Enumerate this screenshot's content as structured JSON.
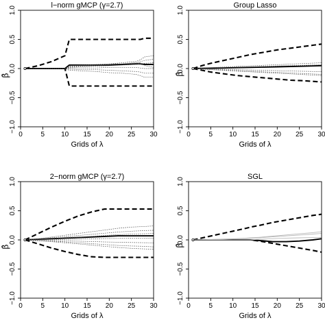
{
  "chart_data": [
    {
      "type": "line",
      "title": "l−norm gMCP (γ=2.7)",
      "xlabel": "Grids of λ",
      "ylabel": "β̂",
      "xlim": [
        0,
        30
      ],
      "ylim": [
        -1,
        1
      ],
      "xticks": [
        "0",
        "5",
        "10",
        "15",
        "20",
        "25",
        "30"
      ],
      "yticks": [
        "−1.0",
        "−0.5",
        "0.0",
        "0.5",
        "1.0"
      ],
      "x": [
        1,
        4,
        7,
        10,
        11,
        14,
        17,
        20,
        23,
        26,
        27,
        28,
        30
      ],
      "series": [
        {
          "style": "thickdash",
          "values": [
            0,
            0.05,
            0.12,
            0.22,
            0.5,
            0.5,
            0.5,
            0.5,
            0.5,
            0.5,
            0.5,
            0.52,
            0.52
          ]
        },
        {
          "style": "thickdash",
          "values": [
            0,
            0,
            0,
            0,
            -0.3,
            -0.3,
            -0.3,
            -0.3,
            -0.3,
            -0.3,
            -0.3,
            -0.3,
            -0.3
          ]
        },
        {
          "style": "solid",
          "values": [
            0,
            0,
            0,
            0,
            0.06,
            0.06,
            0.06,
            0.06,
            0.07,
            0.08,
            0.08,
            0.07,
            0.07
          ]
        },
        {
          "style": "dotted",
          "values": [
            0,
            0,
            0,
            0,
            0.04,
            0.05,
            0.06,
            0.08,
            0.1,
            0.12,
            0.15,
            0.2,
            0.22
          ]
        },
        {
          "style": "dotted",
          "values": [
            0,
            0,
            0,
            0,
            0.03,
            0.04,
            0.05,
            0.07,
            0.08,
            0.1,
            0.12,
            0.14,
            0.16
          ]
        },
        {
          "style": "dotted",
          "values": [
            0,
            0,
            0,
            0,
            0.02,
            0.03,
            0.04,
            0.05,
            0.06,
            0.07,
            0.08,
            0.09,
            0.1
          ]
        },
        {
          "style": "dotted",
          "values": [
            0,
            0,
            0,
            0,
            0.01,
            0.01,
            0.01,
            0.02,
            0.02,
            0.02,
            0.01,
            0.0,
            0.0
          ]
        },
        {
          "style": "dotted",
          "values": [
            0,
            0,
            0,
            0,
            -0.01,
            -0.02,
            -0.02,
            -0.03,
            -0.04,
            -0.05,
            -0.06,
            -0.08,
            -0.08
          ]
        },
        {
          "style": "dotted",
          "values": [
            0,
            0,
            0,
            0,
            -0.03,
            -0.04,
            -0.05,
            -0.07,
            -0.08,
            -0.1,
            -0.12,
            -0.15,
            -0.15
          ]
        },
        {
          "style": "dotted",
          "values": [
            0,
            0,
            0,
            0,
            0.05,
            0.06,
            0.07,
            0.08,
            0.08,
            0.09,
            0.1,
            0.05,
            0.02
          ]
        }
      ]
    },
    {
      "type": "line",
      "title": "Group Lasso",
      "xlabel": "Grids of λ",
      "ylabel": "β̂",
      "xlim": [
        0,
        30
      ],
      "ylim": [
        -1,
        1
      ],
      "xticks": [
        "0",
        "5",
        "10",
        "15",
        "20",
        "25",
        "30"
      ],
      "yticks": [
        "−1.0",
        "−0.5",
        "0.0",
        "0.5",
        "1.0"
      ],
      "x": [
        1,
        3,
        5,
        8,
        11,
        14,
        17,
        20,
        23,
        26,
        28,
        30
      ],
      "series": [
        {
          "style": "thickdash",
          "values": [
            0,
            0.05,
            0.09,
            0.14,
            0.19,
            0.24,
            0.28,
            0.32,
            0.35,
            0.38,
            0.4,
            0.42
          ]
        },
        {
          "style": "thickdash",
          "values": [
            0,
            -0.03,
            -0.06,
            -0.09,
            -0.12,
            -0.14,
            -0.16,
            -0.18,
            -0.2,
            -0.21,
            -0.22,
            -0.23
          ]
        },
        {
          "style": "solid",
          "values": [
            0,
            0.003,
            0.006,
            0.01,
            0.015,
            0.02,
            0.025,
            0.03,
            0.035,
            0.04,
            0.045,
            0.05
          ]
        },
        {
          "style": "dotted",
          "values": [
            0,
            0.008,
            0.016,
            0.026,
            0.036,
            0.046,
            0.056,
            0.066,
            0.076,
            0.086,
            0.093,
            0.1
          ]
        },
        {
          "style": "dotted",
          "values": [
            0,
            0.005,
            0.01,
            0.017,
            0.024,
            0.03,
            0.037,
            0.044,
            0.05,
            0.056,
            0.06,
            0.065
          ]
        },
        {
          "style": "dotted",
          "values": [
            0,
            -0.004,
            -0.008,
            -0.014,
            -0.02,
            -0.025,
            -0.031,
            -0.037,
            -0.042,
            -0.047,
            -0.05,
            -0.055
          ]
        },
        {
          "style": "dotted",
          "values": [
            0,
            -0.008,
            -0.016,
            -0.026,
            -0.036,
            -0.046,
            -0.056,
            -0.066,
            -0.076,
            -0.086,
            -0.093,
            -0.1
          ]
        },
        {
          "style": "dotted",
          "values": [
            0,
            -0.01,
            -0.02,
            -0.032,
            -0.044,
            -0.056,
            -0.068,
            -0.08,
            -0.092,
            -0.104,
            -0.112,
            -0.12
          ]
        }
      ]
    },
    {
      "type": "line",
      "title": "2−norm gMCP (γ=2.7)",
      "xlabel": "Grids of λ",
      "ylabel": "β̂",
      "xlim": [
        0,
        30
      ],
      "ylim": [
        -1,
        1
      ],
      "xticks": [
        "0",
        "5",
        "10",
        "15",
        "20",
        "25",
        "30"
      ],
      "yticks": [
        "−1.0",
        "−0.5",
        "0.0",
        "0.5",
        "1.0"
      ],
      "x": [
        1,
        4,
        7,
        10,
        13,
        16,
        19,
        22,
        25,
        28,
        30
      ],
      "series": [
        {
          "style": "thickdash",
          "values": [
            0,
            0.11,
            0.22,
            0.32,
            0.41,
            0.48,
            0.53,
            0.53,
            0.53,
            0.53,
            0.53
          ]
        },
        {
          "style": "thickdash",
          "values": [
            0,
            -0.07,
            -0.14,
            -0.2,
            -0.25,
            -0.29,
            -0.3,
            -0.3,
            -0.3,
            -0.3,
            -0.3
          ]
        },
        {
          "style": "solid",
          "values": [
            0,
            0.01,
            0.02,
            0.03,
            0.04,
            0.05,
            0.06,
            0.07,
            0.07,
            0.07,
            0.07
          ]
        },
        {
          "style": "dotted",
          "values": [
            0,
            0.02,
            0.05,
            0.08,
            0.11,
            0.14,
            0.17,
            0.2,
            0.22,
            0.23,
            0.24
          ]
        },
        {
          "style": "dotted",
          "values": [
            0,
            0.015,
            0.035,
            0.055,
            0.075,
            0.095,
            0.115,
            0.135,
            0.15,
            0.16,
            0.165
          ]
        },
        {
          "style": "dotted",
          "values": [
            0,
            0.01,
            0.02,
            0.03,
            0.045,
            0.06,
            0.075,
            0.09,
            0.1,
            0.105,
            0.11
          ]
        },
        {
          "style": "dotted",
          "values": [
            0,
            0.003,
            0.006,
            0.01,
            0.014,
            0.018,
            0.022,
            0.026,
            0.028,
            0.03,
            0.03
          ]
        },
        {
          "style": "dotted",
          "values": [
            0,
            -0.005,
            -0.01,
            -0.016,
            -0.022,
            -0.028,
            -0.035,
            -0.04,
            -0.045,
            -0.048,
            -0.05
          ]
        },
        {
          "style": "dotted",
          "values": [
            0,
            -0.01,
            -0.02,
            -0.035,
            -0.05,
            -0.065,
            -0.08,
            -0.095,
            -0.105,
            -0.11,
            -0.12
          ]
        },
        {
          "style": "dotted",
          "values": [
            0,
            -0.015,
            -0.03,
            -0.05,
            -0.07,
            -0.09,
            -0.11,
            -0.13,
            -0.145,
            -0.155,
            -0.16
          ]
        }
      ]
    },
    {
      "type": "line",
      "title": "SGL",
      "xlabel": "Grids of λ",
      "ylabel": "β̂",
      "xlim": [
        0,
        30
      ],
      "ylim": [
        -1,
        1
      ],
      "xticks": [
        "0",
        "5",
        "10",
        "15",
        "20",
        "25",
        "30"
      ],
      "yticks": [
        "−1.0",
        "−0.5",
        "0.0",
        "0.5",
        "1.0"
      ],
      "x": [
        1,
        4,
        7,
        10,
        13,
        14,
        16,
        19,
        22,
        25,
        28,
        30
      ],
      "series": [
        {
          "style": "thickdash",
          "values": [
            0,
            0.05,
            0.1,
            0.15,
            0.2,
            0.22,
            0.25,
            0.3,
            0.34,
            0.38,
            0.42,
            0.44
          ]
        },
        {
          "style": "thickdash",
          "values": [
            0,
            0,
            0,
            0,
            0,
            0,
            -0.02,
            -0.06,
            -0.1,
            -0.14,
            -0.18,
            -0.21
          ]
        },
        {
          "style": "solid",
          "values": [
            0,
            0,
            0,
            0,
            0,
            0,
            -0.01,
            -0.03,
            -0.03,
            -0.02,
            0.0,
            0.02
          ]
        },
        {
          "style": "light",
          "values": [
            0,
            0.005,
            0.012,
            0.02,
            0.03,
            0.035,
            0.045,
            0.065,
            0.085,
            0.105,
            0.125,
            0.14
          ]
        },
        {
          "style": "light",
          "values": [
            0,
            0.004,
            0.01,
            0.016,
            0.024,
            0.028,
            0.036,
            0.052,
            0.068,
            0.084,
            0.1,
            0.11
          ]
        },
        {
          "style": "light",
          "values": [
            0,
            0,
            0,
            0,
            0,
            0,
            0.01,
            0.02,
            0.03,
            0.035,
            0.04,
            0.04
          ]
        }
      ]
    }
  ]
}
